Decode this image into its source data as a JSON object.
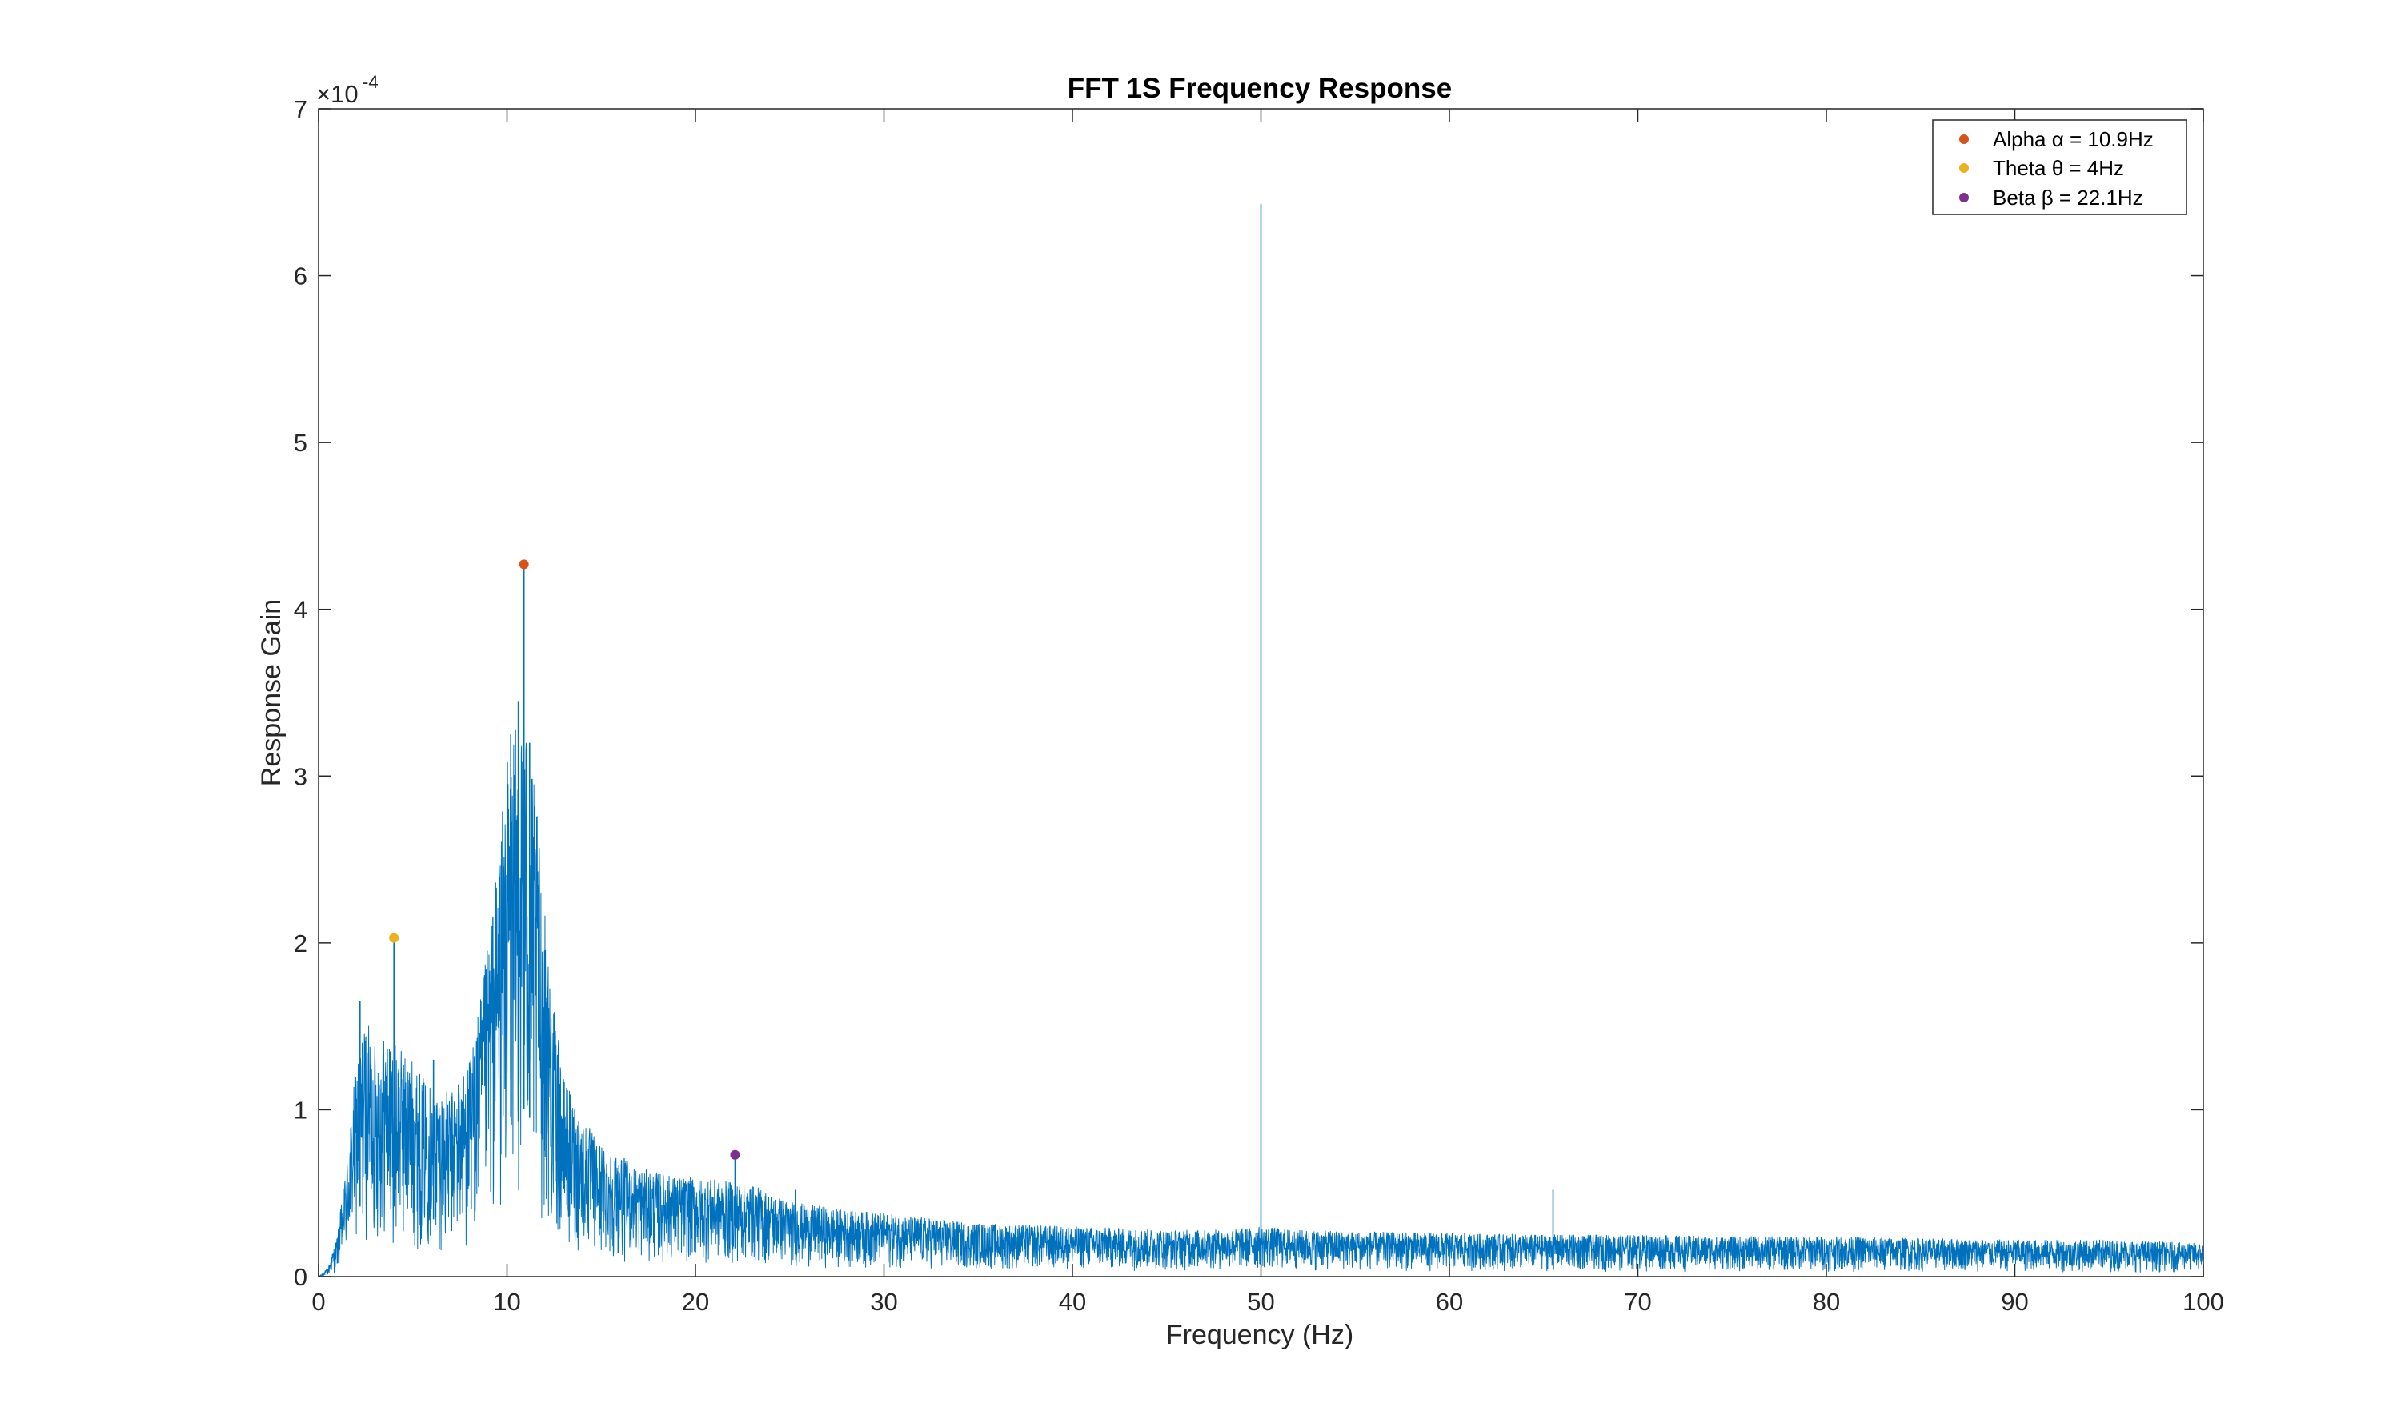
{
  "chart_data": {
    "type": "line",
    "title": "FFT 1S Frequency Response",
    "xlabel": "Frequency (Hz)",
    "ylabel": "Response Gain",
    "xlim": [
      0,
      100
    ],
    "ylim": [
      0,
      7
    ],
    "y_exponent_label": "×10",
    "y_exponent_power": "-4",
    "x_ticks": [
      "0",
      "10",
      "20",
      "30",
      "40",
      "50",
      "60",
      "70",
      "80",
      "90",
      "100"
    ],
    "y_ticks": [
      "0",
      "1",
      "2",
      "3",
      "4",
      "5",
      "6",
      "7"
    ],
    "grid": false,
    "legend_position": "top-right",
    "line_color": "#0072BD",
    "series": [
      {
        "style": "line",
        "color": "#0072BD",
        "envelope": [
          [
            0,
            0.0
          ],
          [
            0.5,
            0.05
          ],
          [
            1,
            0.25
          ],
          [
            1.5,
            0.7
          ],
          [
            2,
            1.3
          ],
          [
            2.5,
            1.55
          ],
          [
            3,
            1.4
          ],
          [
            3.5,
            1.45
          ],
          [
            4,
            1.4
          ],
          [
            4.5,
            1.35
          ],
          [
            5,
            1.3
          ],
          [
            5.5,
            1.2
          ],
          [
            6,
            1.15
          ],
          [
            7,
            1.1
          ],
          [
            8,
            1.3
          ],
          [
            8.5,
            1.6
          ],
          [
            9,
            2.0
          ],
          [
            9.5,
            2.5
          ],
          [
            10,
            3.1
          ],
          [
            10.5,
            3.3
          ],
          [
            11,
            3.35
          ],
          [
            11.5,
            2.9
          ],
          [
            12,
            2.2
          ],
          [
            12.5,
            1.6
          ],
          [
            13,
            1.2
          ],
          [
            14,
            0.95
          ],
          [
            15,
            0.8
          ],
          [
            17,
            0.65
          ],
          [
            19,
            0.6
          ],
          [
            21,
            0.58
          ],
          [
            23,
            0.55
          ],
          [
            25,
            0.45
          ],
          [
            28,
            0.4
          ],
          [
            30,
            0.38
          ],
          [
            35,
            0.32
          ],
          [
            40,
            0.3
          ],
          [
            45,
            0.28
          ],
          [
            48,
            0.28
          ],
          [
            50,
            0.3
          ],
          [
            52,
            0.28
          ],
          [
            55,
            0.27
          ],
          [
            60,
            0.26
          ],
          [
            65,
            0.25
          ],
          [
            70,
            0.25
          ],
          [
            75,
            0.24
          ],
          [
            80,
            0.24
          ],
          [
            85,
            0.23
          ],
          [
            90,
            0.22
          ],
          [
            95,
            0.22
          ],
          [
            100,
            0.2
          ]
        ],
        "spikes": [
          [
            2.2,
            1.65
          ],
          [
            4.0,
            2.03
          ],
          [
            6.1,
            1.3
          ],
          [
            8.1,
            1.22
          ],
          [
            10.2,
            3.25
          ],
          [
            10.6,
            3.45
          ],
          [
            10.9,
            4.27
          ],
          [
            11.2,
            3.2
          ],
          [
            22.1,
            0.73
          ],
          [
            25.3,
            0.52
          ],
          [
            50.0,
            6.43
          ],
          [
            65.5,
            0.52
          ]
        ]
      },
      {
        "name": "Alpha α = 10.9Hz",
        "style": "marker",
        "color": "#D95319",
        "x": 10.9,
        "y": 4.27
      },
      {
        "name": "Theta θ = 4Hz",
        "style": "marker",
        "color": "#EDB120",
        "x": 4.0,
        "y": 2.03
      },
      {
        "name": "Beta β = 22.1Hz",
        "style": "marker",
        "color": "#7E2F8E",
        "x": 22.1,
        "y": 0.73
      }
    ]
  }
}
